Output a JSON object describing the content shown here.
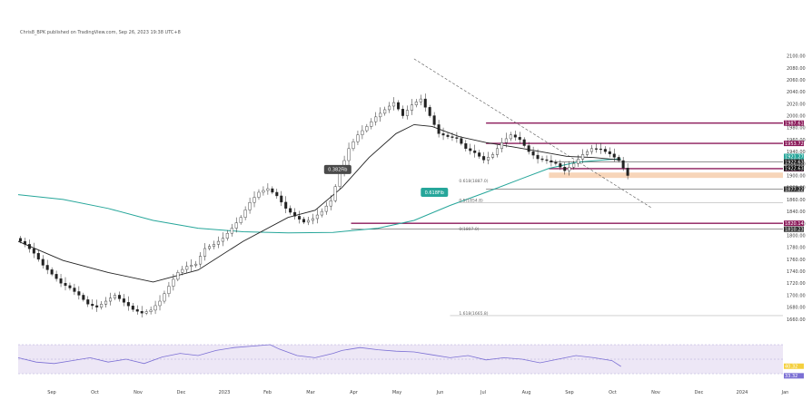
{
  "header": {
    "publisher_line": "Chris8_BPK published on TradingView.com, Sep 26, 2023 19:38 UTC+8"
  },
  "chart_data": {
    "type": "candlestick",
    "x_axis": {
      "ticks": [
        "Sep",
        "Oct",
        "Nov",
        "Dec",
        "2023",
        "Feb",
        "Mar",
        "Apr",
        "May",
        "Jun",
        "Jul",
        "Aug",
        "Sep",
        "Oct",
        "Nov",
        "Dec",
        "2024",
        "Jan"
      ]
    },
    "y_axis": {
      "min": 1640,
      "max": 2110,
      "ticks": [
        1660,
        1680,
        1700,
        1720,
        1740,
        1760,
        1780,
        1800,
        1820,
        1840,
        1860,
        1880,
        1900,
        1920,
        1940,
        1960,
        1980,
        2000,
        2020,
        2040,
        2060,
        2080,
        2100
      ],
      "tick_labels": [
        "1660.00",
        "1680.00",
        "1700.00",
        "1720.00",
        "1740.00",
        "1760.00",
        "1780.00",
        "1800.00",
        "1820.00",
        "1840.00",
        "1860.00",
        "1880.00",
        "1900.00",
        "1920.00",
        "1940.00",
        "1960.00",
        "1980.00",
        "2000.00",
        "2020.00",
        "2040.00",
        "2060.00",
        "2080.00",
        "2100.00"
      ]
    },
    "price_path": [
      [
        0,
        1795
      ],
      [
        2,
        1785
      ],
      [
        4,
        1770
      ],
      [
        6,
        1750
      ],
      [
        8,
        1735
      ],
      [
        10,
        1720
      ],
      [
        12,
        1712
      ],
      [
        14,
        1700
      ],
      [
        16,
        1685
      ],
      [
        18,
        1680
      ],
      [
        20,
        1690
      ],
      [
        22,
        1700
      ],
      [
        24,
        1688
      ],
      [
        26,
        1676
      ],
      [
        28,
        1670
      ],
      [
        30,
        1675
      ],
      [
        32,
        1690
      ],
      [
        34,
        1715
      ],
      [
        36,
        1738
      ],
      [
        38,
        1748
      ],
      [
        40,
        1752
      ],
      [
        42,
        1778
      ],
      [
        44,
        1785
      ],
      [
        46,
        1795
      ],
      [
        48,
        1812
      ],
      [
        50,
        1830
      ],
      [
        52,
        1855
      ],
      [
        54,
        1872
      ],
      [
        56,
        1878
      ],
      [
        58,
        1866
      ],
      [
        60,
        1845
      ],
      [
        62,
        1832
      ],
      [
        64,
        1822
      ],
      [
        66,
        1828
      ],
      [
        68,
        1840
      ],
      [
        70,
        1858
      ],
      [
        72,
        1905
      ],
      [
        74,
        1945
      ],
      [
        76,
        1968
      ],
      [
        78,
        1982
      ],
      [
        80,
        1998
      ],
      [
        82,
        2010
      ],
      [
        84,
        2022
      ],
      [
        86,
        2000
      ],
      [
        88,
        2018
      ],
      [
        90,
        2028
      ],
      [
        92,
        2000
      ],
      [
        94,
        1970
      ],
      [
        96,
        1965
      ],
      [
        98,
        1962
      ],
      [
        100,
        1945
      ],
      [
        102,
        1938
      ],
      [
        104,
        1926
      ],
      [
        106,
        1935
      ],
      [
        108,
        1955
      ],
      [
        110,
        1968
      ],
      [
        112,
        1960
      ],
      [
        114,
        1940
      ],
      [
        116,
        1928
      ],
      [
        118,
        1925
      ],
      [
        120,
        1920
      ],
      [
        122,
        1908
      ],
      [
        124,
        1920
      ],
      [
        126,
        1935
      ],
      [
        128,
        1945
      ],
      [
        130,
        1944
      ],
      [
        132,
        1936
      ],
      [
        134,
        1925
      ],
      [
        136,
        1900
      ]
    ],
    "moving_average_black": [
      [
        0,
        1790
      ],
      [
        10,
        1758
      ],
      [
        20,
        1738
      ],
      [
        30,
        1722
      ],
      [
        40,
        1742
      ],
      [
        50,
        1790
      ],
      [
        60,
        1830
      ],
      [
        66,
        1842
      ],
      [
        72,
        1880
      ],
      [
        78,
        1930
      ],
      [
        84,
        1970
      ],
      [
        88,
        1985
      ],
      [
        92,
        1982
      ],
      [
        98,
        1965
      ],
      [
        104,
        1955
      ],
      [
        110,
        1948
      ],
      [
        116,
        1940
      ],
      [
        122,
        1932
      ],
      [
        128,
        1930
      ],
      [
        134,
        1926
      ]
    ],
    "moving_average_teal": [
      [
        0,
        1868
      ],
      [
        10,
        1860
      ],
      [
        20,
        1845
      ],
      [
        30,
        1825
      ],
      [
        40,
        1812
      ],
      [
        50,
        1806
      ],
      [
        60,
        1804
      ],
      [
        70,
        1805
      ],
      [
        80,
        1812
      ],
      [
        88,
        1825
      ],
      [
        96,
        1850
      ],
      [
        104,
        1872
      ],
      [
        112,
        1895
      ],
      [
        118,
        1912
      ],
      [
        124,
        1922
      ],
      [
        130,
        1926
      ],
      [
        134,
        1928
      ]
    ],
    "horizontal_levels": [
      {
        "value": 1987.61,
        "label": "1987.61",
        "color": "#8b1a5a"
      },
      {
        "value": 1953.72,
        "label": "1953.72",
        "color": "#8b1a5a"
      },
      {
        "value": 1922.63,
        "label": "1922.63",
        "color": "#222222"
      },
      {
        "value": 1911.47,
        "label": "1911.47",
        "color": "#8b1a5a"
      },
      {
        "value": 1877.22,
        "label": "1877.22",
        "color": "#333333"
      },
      {
        "value": 1820.14,
        "label": "1820.14",
        "color": "#8b1a5a"
      },
      {
        "value": 1810.23,
        "label": "1810.23",
        "color": "#333333"
      }
    ],
    "support_zone": {
      "from": 1896,
      "to": 1905
    },
    "rsi": {
      "levels": [
        70,
        50,
        30
      ],
      "value": 40.32,
      "path": [
        [
          0,
          52
        ],
        [
          4,
          46
        ],
        [
          8,
          44
        ],
        [
          12,
          48
        ],
        [
          16,
          52
        ],
        [
          20,
          46
        ],
        [
          24,
          50
        ],
        [
          28,
          44
        ],
        [
          32,
          53
        ],
        [
          36,
          58
        ],
        [
          40,
          55
        ],
        [
          44,
          62
        ],
        [
          48,
          66
        ],
        [
          52,
          68
        ],
        [
          56,
          70
        ],
        [
          58,
          64
        ],
        [
          62,
          55
        ],
        [
          66,
          52
        ],
        [
          70,
          58
        ],
        [
          72,
          62
        ],
        [
          76,
          66
        ],
        [
          80,
          63
        ],
        [
          84,
          61
        ],
        [
          88,
          60
        ],
        [
          92,
          56
        ],
        [
          96,
          52
        ],
        [
          100,
          55
        ],
        [
          104,
          49
        ],
        [
          108,
          52
        ],
        [
          112,
          50
        ],
        [
          116,
          45
        ],
        [
          120,
          50
        ],
        [
          124,
          55
        ],
        [
          128,
          52
        ],
        [
          132,
          48
        ],
        [
          134,
          40
        ]
      ]
    }
  },
  "annotations": {
    "label_dark": "0.382Fib",
    "label_teal": "0.618Fib",
    "fib_labels": [
      "0.618(1887.0)",
      "0.5(1854.8)",
      "0(1807.0)",
      "1.618(1665.8)"
    ]
  },
  "price_tags": {
    "tag_dark": "1922.63",
    "tag_teal": "1921.27",
    "rsi_tag_1": "40.32",
    "rsi_tag_2": "33.32"
  },
  "colors": {
    "up": "#222222",
    "down": "#222222",
    "teal": "#26a69a",
    "magenta": "#8b1a5a",
    "rsi_line": "#7b6fd4",
    "rsi_bg": "#ede7f6",
    "zone": "#f5cba7"
  }
}
